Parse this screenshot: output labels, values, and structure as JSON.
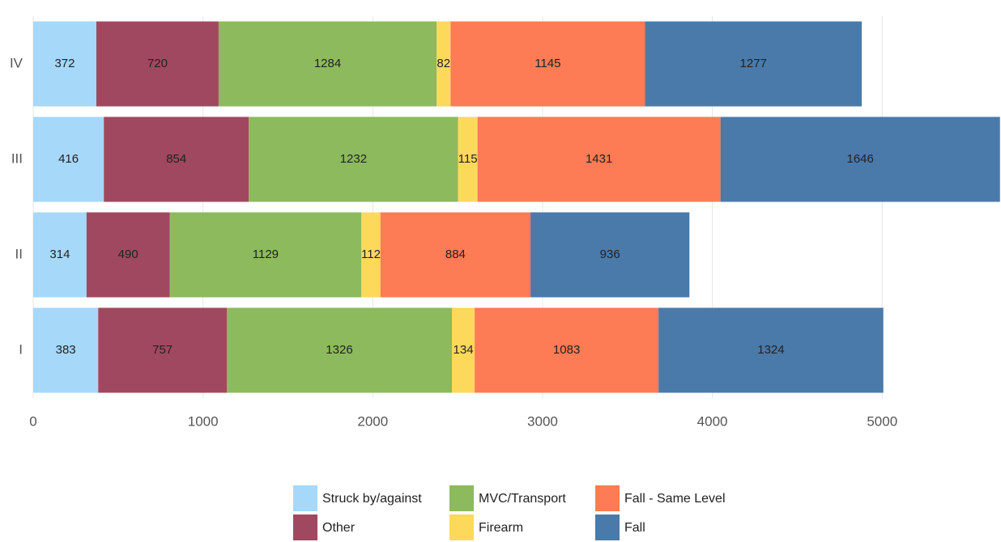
{
  "chart_data": {
    "type": "stacked_barh",
    "categories": [
      "I",
      "II",
      "III",
      "IV"
    ],
    "series": [
      {
        "name": "Struck by/against",
        "color": "#a6d8fa",
        "values": [
          383,
          314,
          416,
          372
        ]
      },
      {
        "name": "Other",
        "color": "#a0485f",
        "values": [
          757,
          490,
          854,
          720
        ]
      },
      {
        "name": "MVC/Transport",
        "color": "#8cba5c",
        "values": [
          1326,
          1129,
          1232,
          1284
        ]
      },
      {
        "name": "Firearm",
        "color": "#fcd95b",
        "values": [
          134,
          112,
          115,
          82
        ]
      },
      {
        "name": "Fall - Same Level",
        "color": "#fd7b55",
        "values": [
          1083,
          884,
          1431,
          1145
        ]
      },
      {
        "name": "Fall",
        "color": "#4a7aa9",
        "values": [
          1324,
          936,
          1646,
          1277
        ]
      }
    ],
    "xlim": [
      0,
      5700
    ],
    "xticks": [
      0,
      1000,
      2000,
      3000,
      4000,
      5000
    ],
    "grid": true,
    "legend": "bottom"
  }
}
